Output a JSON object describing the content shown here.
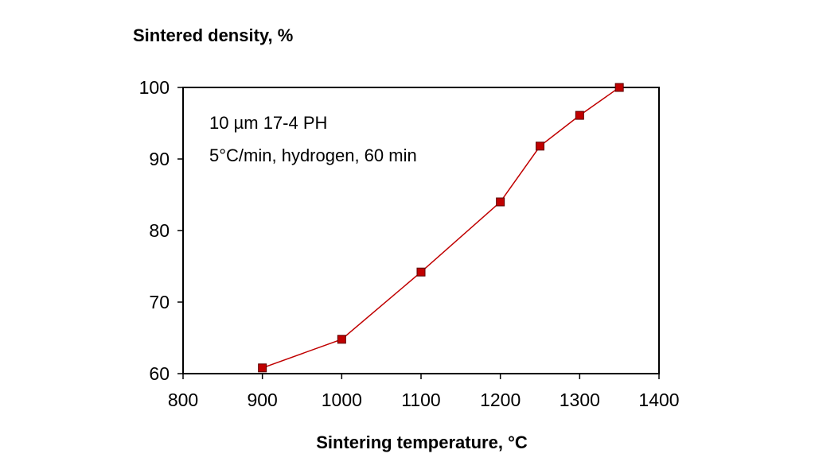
{
  "chart_data": {
    "type": "line",
    "title": "",
    "xlabel": "Sintering temperature, °C",
    "ylabel": "Sintered density, %",
    "xlim": [
      800,
      1400
    ],
    "ylim": [
      60,
      100
    ],
    "x_ticks": [
      800,
      900,
      1000,
      1100,
      1200,
      1300,
      1400
    ],
    "y_ticks": [
      60,
      70,
      80,
      90,
      100
    ],
    "grid": false,
    "annotations": [
      "10 µm 17-4 PH",
      "5°C/min, hydrogen, 60 min"
    ],
    "series": [
      {
        "color": "#c00000",
        "marker": "square",
        "x": [
          900,
          1000,
          1100,
          1200,
          1250,
          1300,
          1350
        ],
        "y": [
          60.8,
          64.8,
          74.2,
          84.0,
          91.8,
          96.1,
          100.0
        ]
      }
    ]
  }
}
